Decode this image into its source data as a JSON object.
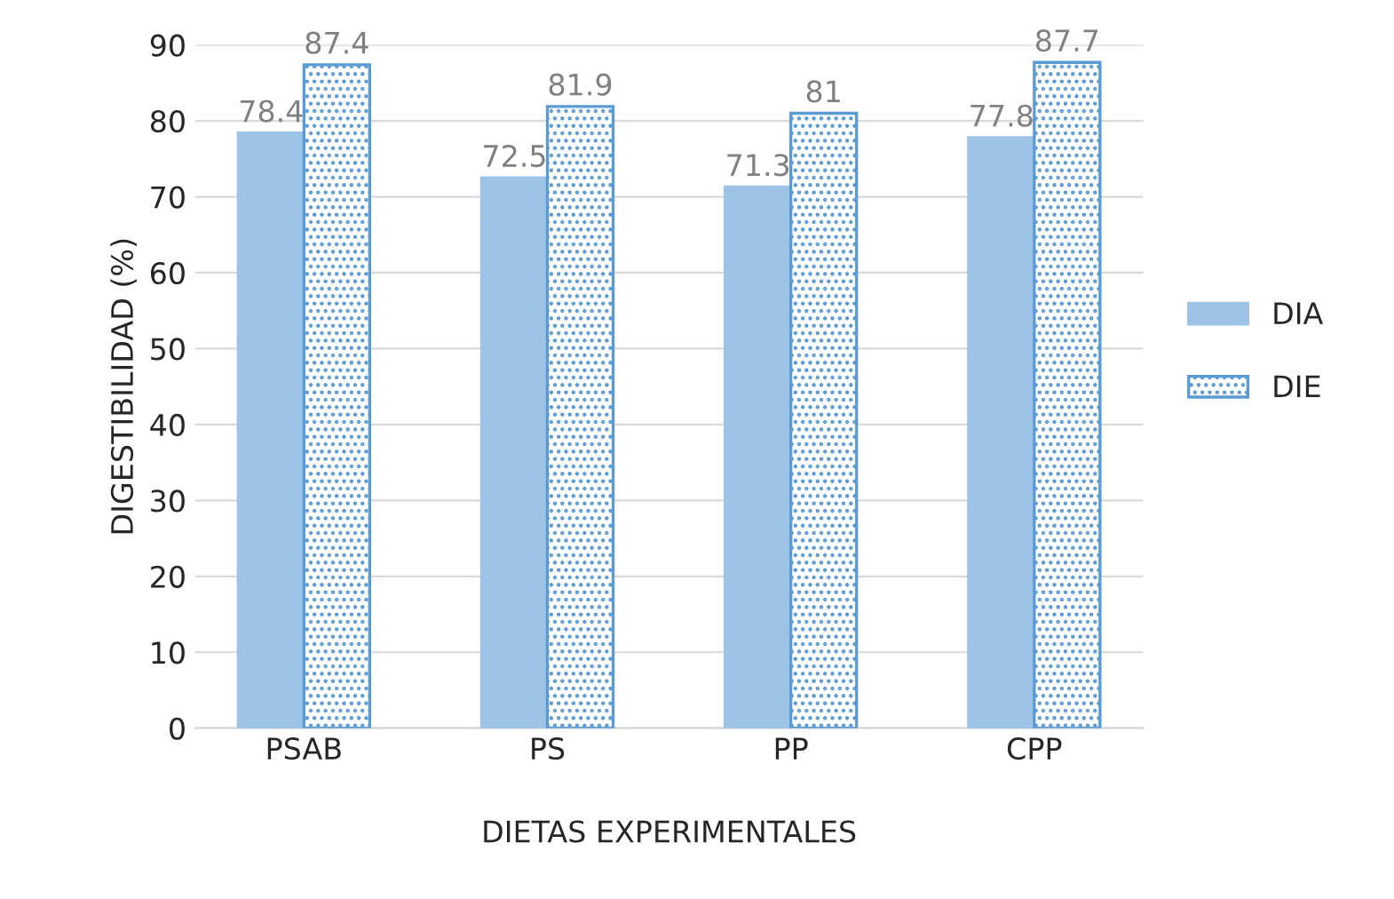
{
  "chart_data": {
    "type": "bar",
    "xlabel": "DIETAS EXPERIMENTALES",
    "ylabel": "DIGESTIBILIDAD (%)",
    "categories": [
      "PSAB",
      "PS",
      "PP",
      "CPP"
    ],
    "series": [
      {
        "name": "DIA",
        "color": "#9dc3e6",
        "values": [
          78.4,
          72.5,
          71.3,
          77.8
        ]
      },
      {
        "name": "DIE",
        "color": "#5b9bd5",
        "values": [
          87.4,
          81.9,
          81,
          87.7
        ]
      }
    ],
    "ylim": [
      0,
      90
    ],
    "yticks": [
      0,
      10,
      20,
      30,
      40,
      50,
      60,
      70,
      80,
      90
    ],
    "grid": "y",
    "legend": "right",
    "data_labels": true
  }
}
